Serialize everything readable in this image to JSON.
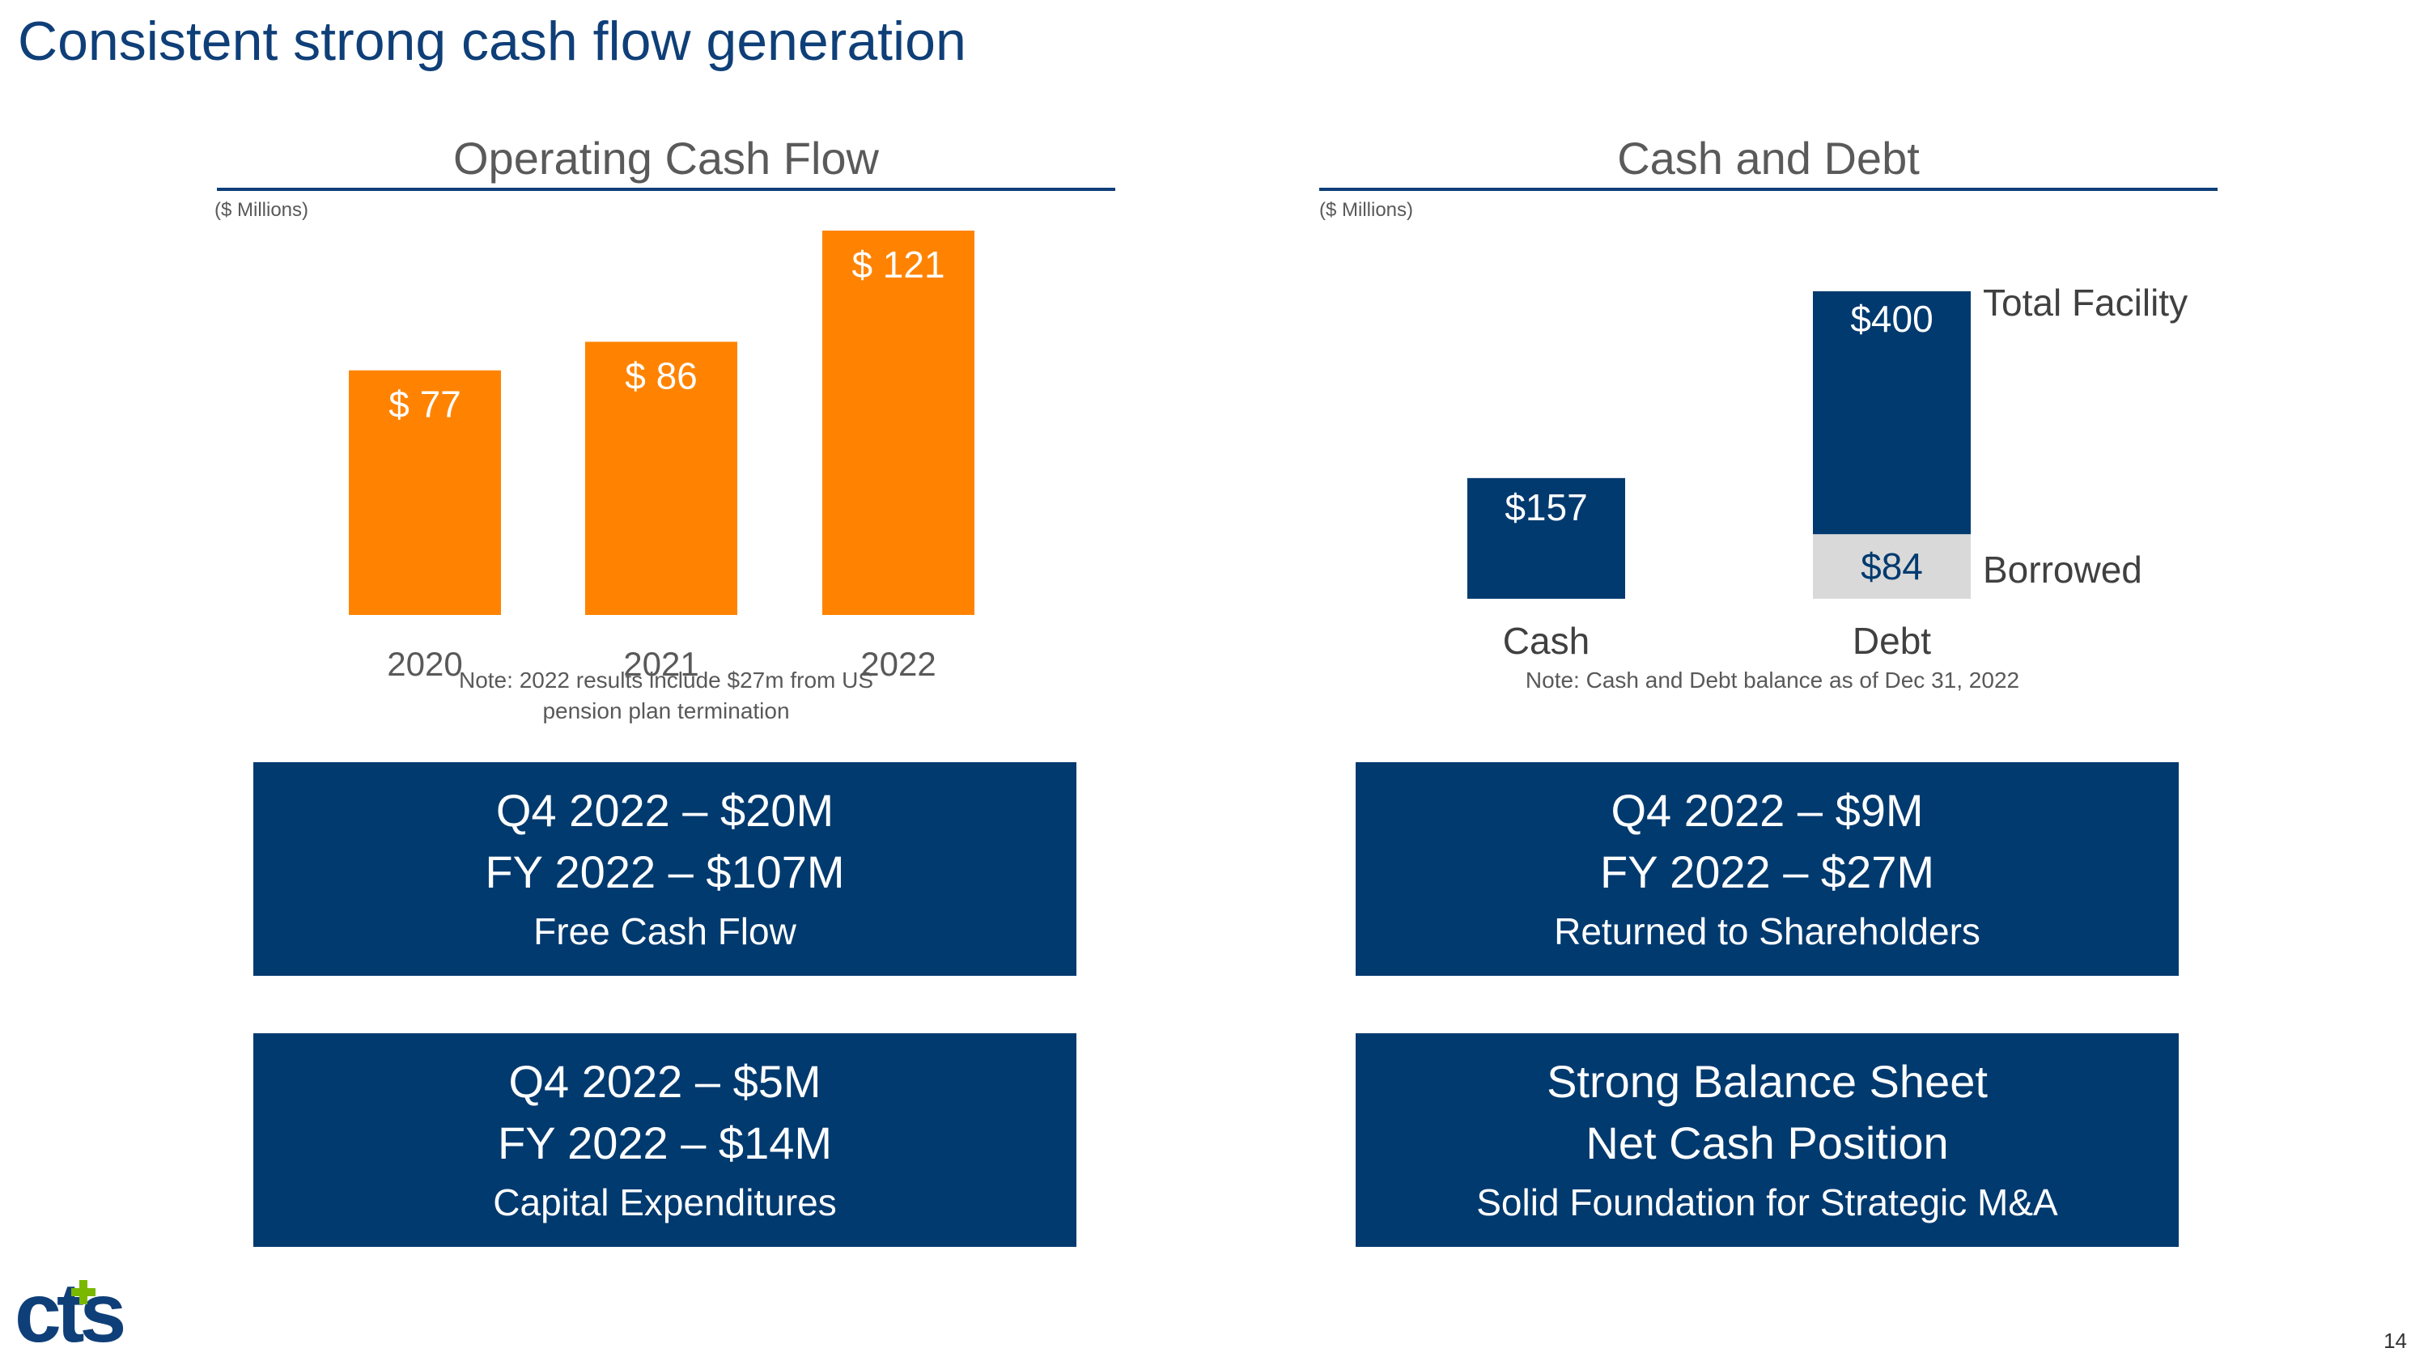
{
  "page": {
    "title": "Consistent strong cash flow generation",
    "page_number": "14",
    "logo_text": "cts"
  },
  "colors": {
    "brand_blue": "#0f3f78",
    "box_blue": "#003a6f",
    "orange": "#ff8300",
    "gray_bar": "#d9d9d9"
  },
  "charts": {
    "ocf": {
      "units": "($ Millions)",
      "note_line1": "Note: 2022 results include $27m from US",
      "note_line2": "pension plan termination"
    },
    "cash_debt": {
      "units": "($ Millions)",
      "note": "Note: Cash and Debt balance as of Dec 31, 2022"
    }
  },
  "chart_data": [
    {
      "type": "bar",
      "title": "Operating Cash Flow",
      "ylabel": "($ Millions)",
      "categories": [
        "2020",
        "2021",
        "2022"
      ],
      "values": [
        77,
        86,
        121
      ],
      "data_labels": [
        "$ 77",
        "$ 86",
        "$ 121"
      ],
      "ylim": [
        0,
        121
      ]
    },
    {
      "type": "bar",
      "title": "Cash and Debt",
      "ylabel": "($ Millions)",
      "categories": [
        "Cash",
        "Debt"
      ],
      "series": [
        {
          "name": "Cash",
          "values": [
            157,
            null
          ],
          "label": "$157"
        },
        {
          "name": "Borrowed",
          "values": [
            null,
            84
          ],
          "label": "$84"
        },
        {
          "name": "Total Facility",
          "values": [
            null,
            400
          ],
          "label": "$400"
        }
      ],
      "legend": [
        "Total Facility",
        "Borrowed"
      ],
      "ylim": [
        0,
        400
      ]
    }
  ],
  "boxes": [
    {
      "line1": "Q4 2022 – $20M",
      "line2": "FY 2022 – $107M",
      "caption": "Free Cash Flow"
    },
    {
      "line1": "Q4 2022 – $9M",
      "line2": "FY 2022 – $27M",
      "caption": "Returned to Shareholders"
    },
    {
      "line1": "Q4 2022 – $5M",
      "line2": "FY 2022 – $14M",
      "caption": "Capital Expenditures"
    },
    {
      "line1": "Strong Balance Sheet",
      "line2": "Net Cash Position",
      "caption": "Solid Foundation for Strategic M&A"
    }
  ]
}
